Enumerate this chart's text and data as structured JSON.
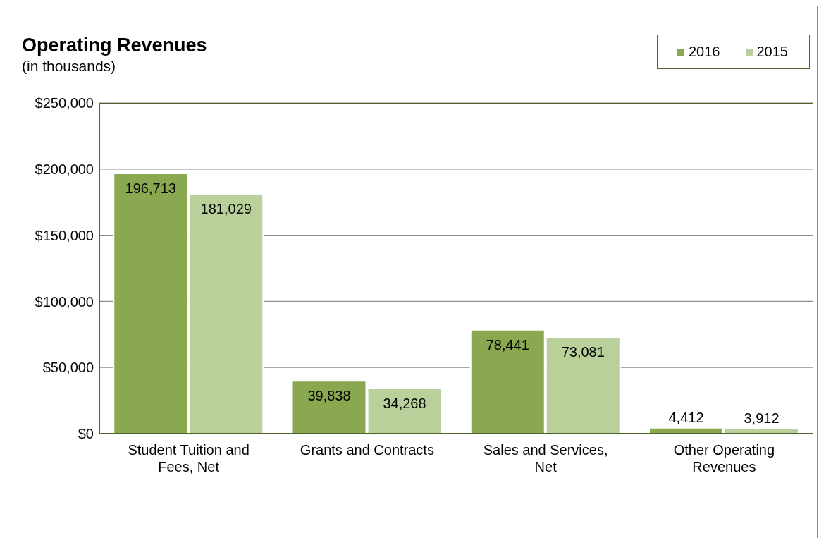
{
  "chart_data": {
    "type": "bar",
    "title": "Operating Revenues",
    "subtitle": "(in thousands)",
    "categories": [
      "Student Tuition and Fees, Net",
      "Grants and Contracts",
      "Sales and Services, Net",
      "Other Operating Revenues"
    ],
    "series": [
      {
        "name": "2016",
        "color": "#8aa84f",
        "values": [
          196713,
          39838,
          78441,
          4412
        ],
        "value_labels": [
          "196,713",
          "39,838",
          "78,441",
          "4,412"
        ]
      },
      {
        "name": "2015",
        "color": "#b9d09a",
        "values": [
          181029,
          34268,
          73081,
          3912
        ],
        "value_labels": [
          "181,029",
          "34,268",
          "73,081",
          "3,912"
        ]
      }
    ],
    "ylim": [
      0,
      250000
    ],
    "yticks": [
      {
        "value": 0,
        "label": "$0"
      },
      {
        "value": 50000,
        "label": "$50,000"
      },
      {
        "value": 100000,
        "label": "$100,000"
      },
      {
        "value": 150000,
        "label": "$150,000"
      },
      {
        "value": 200000,
        "label": "$200,000"
      },
      {
        "value": 250000,
        "label": "$250,000"
      }
    ],
    "grid": "y",
    "legend": "top right"
  }
}
